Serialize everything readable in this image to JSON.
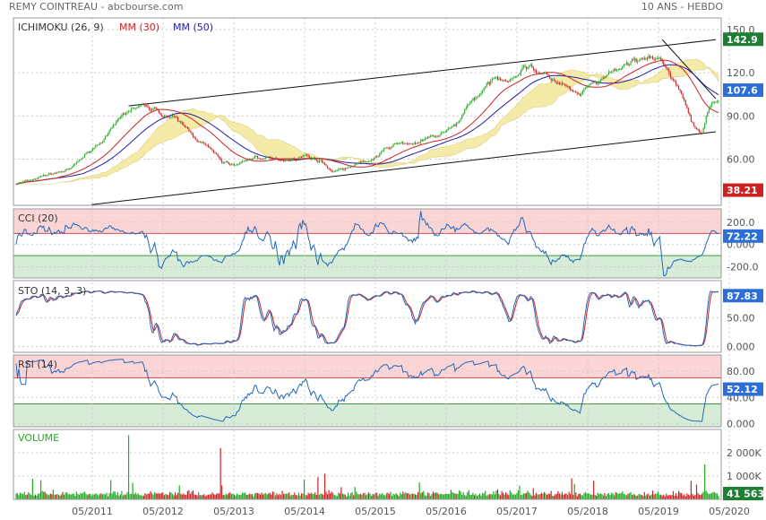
{
  "header": {
    "stock": "REMY COINTREAU - abcbourse.com",
    "period": "10 ANS - HEBDO"
  },
  "colors": {
    "up": "#22aa22",
    "down": "#cc2222",
    "ma30": "#cc2222",
    "ma50": "#1f1faa",
    "cloud": "#f5e9a0",
    "indicator": "#2266bb",
    "overbought_fill": "#fbd5d5",
    "oversold_fill": "#d6ecd6",
    "price_badge": "#1e7e34",
    "current_badge": "#2b6fd6",
    "low_badge": "#cc2222"
  },
  "chart_data": [
    {
      "type": "candlestick",
      "id": "price",
      "legend": [
        "ICHIMOKU (26, 9)",
        "MM (30)",
        "MM (50)"
      ],
      "yticks": [
        60,
        90,
        120,
        150
      ],
      "yticks_labels": [
        "60.00",
        "90.00",
        "120.0",
        "150.0"
      ],
      "ylim": [
        28,
        158
      ],
      "value_badges": [
        {
          "label": "142.9",
          "value": 142.9,
          "color": "price_badge"
        },
        {
          "label": "107.6",
          "value": 107.6,
          "color": "current_badge"
        },
        {
          "label": "38.21",
          "value": 38.21,
          "color": "low_badge"
        }
      ],
      "anchors": [
        [
          0,
          43
        ],
        [
          10,
          45
        ],
        [
          22,
          49
        ],
        [
          40,
          53
        ],
        [
          55,
          67
        ],
        [
          70,
          80
        ],
        [
          80,
          92
        ],
        [
          88,
          96
        ],
        [
          100,
          95
        ],
        [
          115,
          88
        ],
        [
          125,
          80
        ],
        [
          140,
          68
        ],
        [
          150,
          58
        ],
        [
          160,
          56
        ],
        [
          175,
          62
        ],
        [
          190,
          59
        ],
        [
          200,
          61
        ],
        [
          210,
          63
        ],
        [
          222,
          59
        ],
        [
          230,
          52
        ],
        [
          245,
          55
        ],
        [
          260,
          60
        ],
        [
          275,
          70
        ],
        [
          290,
          71
        ],
        [
          305,
          75
        ],
        [
          320,
          82
        ],
        [
          330,
          99
        ],
        [
          345,
          112
        ],
        [
          360,
          118
        ],
        [
          375,
          126
        ],
        [
          385,
          118
        ],
        [
          395,
          113
        ],
        [
          410,
          103
        ],
        [
          425,
          113
        ],
        [
          440,
          122
        ],
        [
          455,
          131
        ],
        [
          470,
          126
        ],
        [
          475,
          121
        ],
        [
          485,
          106
        ],
        [
          492,
          85
        ],
        [
          500,
          80
        ],
        [
          505,
          97
        ],
        [
          510,
          103
        ]
      ]
    },
    {
      "type": "line",
      "id": "cci",
      "legend": "CCI (20)",
      "yticks": [
        200,
        0,
        -200
      ],
      "yticks_labels": [
        "200.0",
        "0.000",
        "-200.0"
      ],
      "ylim": [
        -300,
        320
      ],
      "overbought": 100,
      "oversold": -100,
      "last": "72.22"
    },
    {
      "type": "line",
      "id": "sto",
      "legend": "STO (14, 3, 3)",
      "yticks": [
        0,
        50
      ],
      "yticks_labels": [
        "0.000",
        "50.00"
      ],
      "ylim": [
        -10,
        115
      ],
      "last": "87.83"
    },
    {
      "type": "line",
      "id": "rsi",
      "legend": "RSI (14)",
      "yticks": [
        80,
        40,
        0
      ],
      "yticks_labels": [
        "80.00",
        "40.00",
        "0.000"
      ],
      "ylim": [
        -5,
        105
      ],
      "overbought": 70,
      "oversold": 30,
      "last": "52.12"
    },
    {
      "type": "bar",
      "id": "volume",
      "legend": "VOLUME",
      "yticks": [
        1000000,
        2000000
      ],
      "yticks_labels": [
        "1 000K",
        "2 000K"
      ],
      "ylim": [
        0,
        3000000
      ],
      "last": "41 563"
    }
  ],
  "xaxis": {
    "labels": [
      "05/2011",
      "05/2012",
      "05/2013",
      "05/2014",
      "05/2015",
      "05/2016",
      "05/2017",
      "05/2018",
      "05/2019",
      "05/2020"
    ]
  }
}
